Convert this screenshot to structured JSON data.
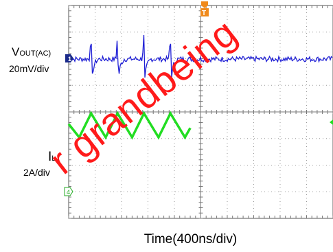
{
  "chart_data": {
    "type": "line",
    "title": "",
    "xlabel": "Time(400ns/div)",
    "x_divisions": 10,
    "y_divisions": 8,
    "grid": true,
    "series": [
      {
        "name": "VOUT(AC)",
        "scale": "20mV/div",
        "channel_marker": "1",
        "color": "#1f1fd6",
        "unit": "mV",
        "baseline": 0,
        "noise_pp": 4,
        "spike_times_div": [
          0.85,
          1.85,
          2.85,
          3.85
        ],
        "spike_peak": 20,
        "spike_trough": -16
      },
      {
        "name": "IL",
        "scale": "2A/div",
        "channel_marker": "4",
        "color": "#22dd22",
        "unit": "A",
        "shape": "triangle",
        "points": [
          {
            "t": 0.0,
            "i": 0.5
          },
          {
            "t": 0.4,
            "i": 0.0
          },
          {
            "t": 0.85,
            "i": 0.9
          },
          {
            "t": 1.4,
            "i": 0.0
          },
          {
            "t": 1.85,
            "i": 0.9
          },
          {
            "t": 2.4,
            "i": 0.0
          },
          {
            "t": 2.85,
            "i": 0.9
          },
          {
            "t": 3.4,
            "i": 0.0
          },
          {
            "t": 3.85,
            "i": 0.9
          },
          {
            "t": 4.4,
            "i": 0.0
          },
          {
            "t": 4.6,
            "i": 0.35
          }
        ]
      }
    ],
    "trigger_marker": "T"
  },
  "labels": {
    "vout_main": "V",
    "vout_sub": "OUT(AC)",
    "vout_scale": "20mV/div",
    "il_main": "I",
    "il_sub": "L",
    "il_scale": "2A/div"
  },
  "watermark": "r grandbeing"
}
